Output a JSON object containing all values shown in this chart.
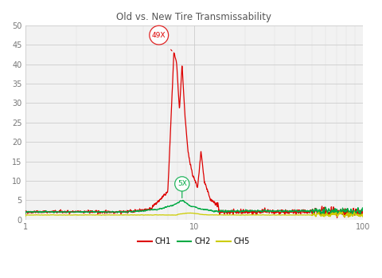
{
  "title": "Old vs. New Tire Transmissability",
  "xlim": [
    1,
    100
  ],
  "ylim": [
    0,
    50
  ],
  "yticks": [
    0,
    5,
    10,
    15,
    20,
    25,
    30,
    35,
    40,
    45,
    50
  ],
  "ch1_color": "#dd0000",
  "ch2_color": "#00aa44",
  "ch5_color": "#cccc00",
  "annotation1_text": "49X",
  "annotation2_text": "5X",
  "background_color": "#f5f5f5",
  "grid_color": "#dddddd",
  "plot_bg": "#f0f0f0",
  "legend_labels": [
    "CH1",
    "CH2",
    "CH5"
  ]
}
